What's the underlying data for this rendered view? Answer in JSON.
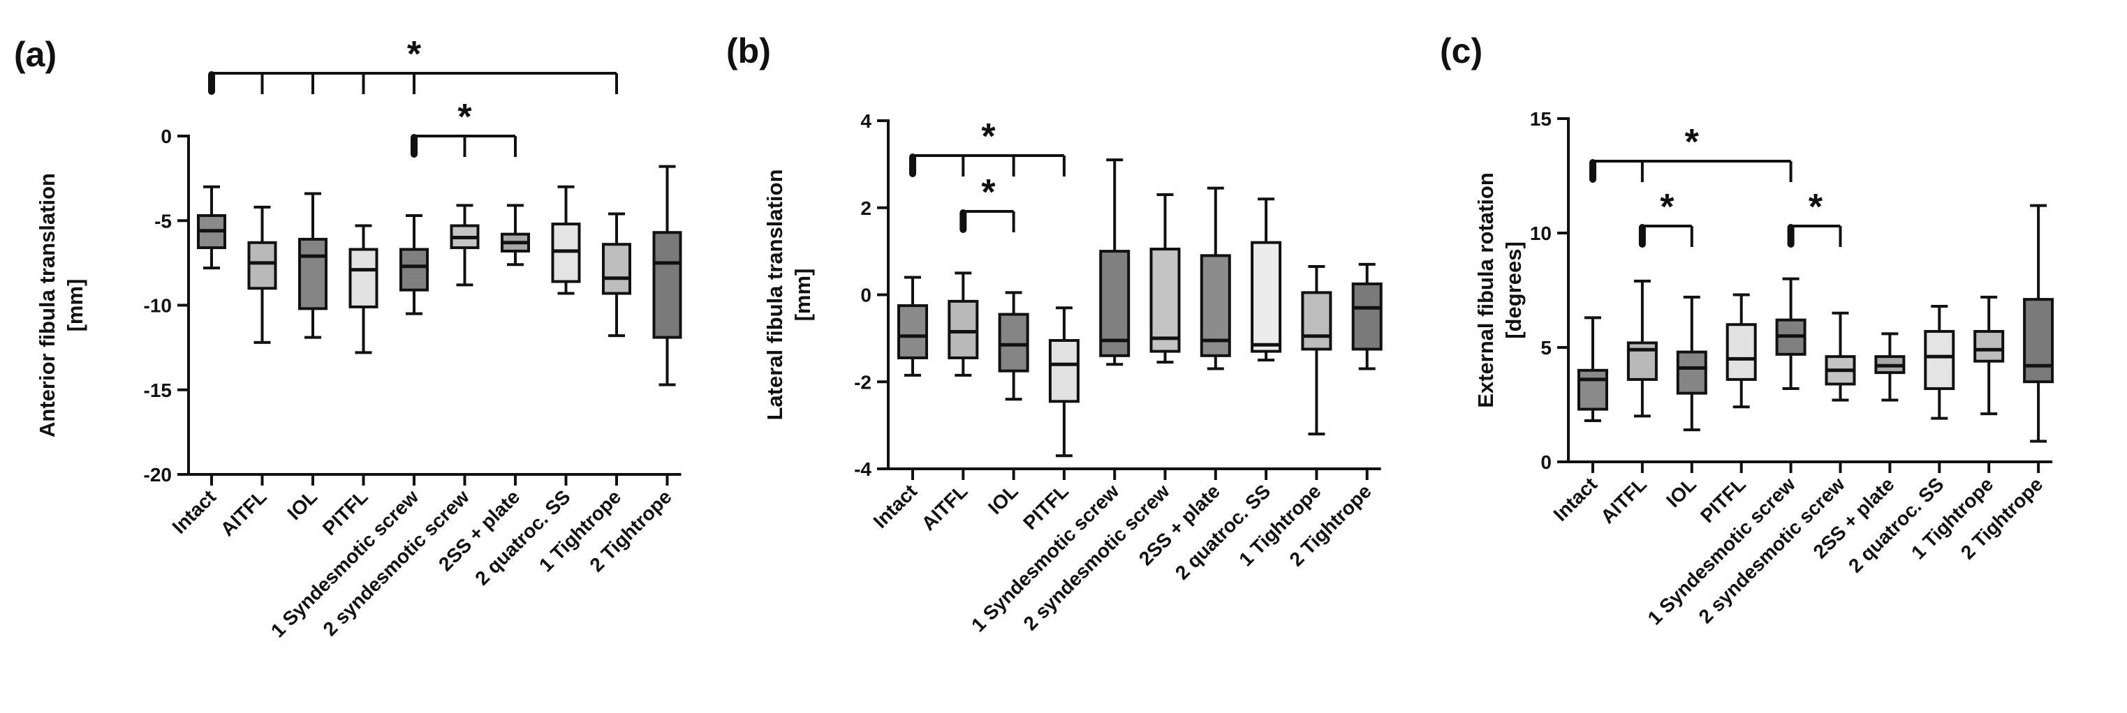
{
  "chart_data": [
    {
      "type": "box",
      "panel_label": "(a)",
      "ylabel_line1": "Anterior fibula translation",
      "ylabel_line2": "[mm]",
      "ylim": [
        -20,
        0
      ],
      "yticks": [
        0,
        -5,
        -10,
        -15,
        -20
      ],
      "ytick_labels": [
        "0",
        "-5",
        "-10",
        "-15",
        "-20"
      ],
      "categories": [
        "Intact",
        "AITFL",
        "IOL",
        "PITFL",
        "1 Syndesmotic screw",
        "2 syndesmotic screw",
        "2SS + plate",
        "2 quatroc. SS",
        "1 Tightrope",
        "2 Tightrope"
      ],
      "shades": [
        "#8a8a8a",
        "#b9b9b9",
        "#858585",
        "#e2e2e2",
        "#808080",
        "#c4c4c4",
        "#a8a8a8",
        "#e4e4e4",
        "#bdbdbd",
        "#7a7a7a"
      ],
      "boxes": [
        {
          "min": -7.8,
          "q1": -6.6,
          "median": -5.6,
          "q3": -4.7,
          "max": -3.0
        },
        {
          "min": -12.2,
          "q1": -9.0,
          "median": -7.5,
          "q3": -6.3,
          "max": -4.2
        },
        {
          "min": -11.9,
          "q1": -10.2,
          "median": -7.1,
          "q3": -6.1,
          "max": -3.4
        },
        {
          "min": -12.8,
          "q1": -10.1,
          "median": -7.9,
          "q3": -6.7,
          "max": -5.3
        },
        {
          "min": -10.5,
          "q1": -9.1,
          "median": -7.7,
          "q3": -6.7,
          "max": -4.7
        },
        {
          "min": -8.8,
          "q1": -6.6,
          "median": -6.0,
          "q3": -5.3,
          "max": -4.1
        },
        {
          "min": -7.6,
          "q1": -6.8,
          "median": -6.3,
          "q3": -5.8,
          "max": -4.1
        },
        {
          "min": -9.3,
          "q1": -8.6,
          "median": -6.8,
          "q3": -5.2,
          "max": -3.0
        },
        {
          "min": -11.8,
          "q1": -9.3,
          "median": -8.4,
          "q3": -6.4,
          "max": -4.6
        },
        {
          "min": -14.7,
          "q1": -11.9,
          "median": -7.5,
          "q3": -5.7,
          "max": -1.8
        }
      ],
      "brackets": [
        {
          "from": 0,
          "to": 8,
          "ticks": [
            1,
            2,
            3,
            4
          ],
          "label": "*",
          "level": 2
        },
        {
          "from": 4,
          "to": 6,
          "ticks": [
            5
          ],
          "label": "*",
          "level": 1
        }
      ]
    },
    {
      "type": "box",
      "panel_label": "(b)",
      "ylabel_line1": "Lateral fibula translation",
      "ylabel_line2": "[mm]",
      "ylim": [
        -4,
        4
      ],
      "yticks": [
        4,
        2,
        0,
        -2,
        -4
      ],
      "ytick_labels": [
        "4",
        "2",
        "0",
        "-2",
        "-4"
      ],
      "categories": [
        "Intact",
        "AITFL",
        "IOL",
        "PITFL",
        "1 Syndesmotic screw",
        "2 syndesmotic screw",
        "2SS + plate",
        "2 quatroc. SS",
        "1 Tightrope",
        "2 Tightrope"
      ],
      "shades": [
        "#8a8a8a",
        "#b9b9b9",
        "#858585",
        "#e2e2e2",
        "#808080",
        "#c4c4c4",
        "#8c8c8c",
        "#ececec",
        "#bdbdbd",
        "#7a7a7a"
      ],
      "boxes": [
        {
          "min": -1.85,
          "q1": -1.45,
          "median": -0.95,
          "q3": -0.25,
          "max": 0.4
        },
        {
          "min": -1.85,
          "q1": -1.45,
          "median": -0.85,
          "q3": -0.15,
          "max": 0.5
        },
        {
          "min": -2.4,
          "q1": -1.75,
          "median": -1.15,
          "q3": -0.45,
          "max": 0.05
        },
        {
          "min": -3.7,
          "q1": -2.45,
          "median": -1.6,
          "q3": -1.05,
          "max": -0.3
        },
        {
          "min": -1.6,
          "q1": -1.4,
          "median": -1.05,
          "q3": 1.0,
          "max": 3.1
        },
        {
          "min": -1.55,
          "q1": -1.3,
          "median": -1.0,
          "q3": 1.05,
          "max": 2.3
        },
        {
          "min": -1.7,
          "q1": -1.4,
          "median": -1.05,
          "q3": 0.9,
          "max": 2.45
        },
        {
          "min": -1.5,
          "q1": -1.3,
          "median": -1.15,
          "q3": 1.2,
          "max": 2.2
        },
        {
          "min": -3.2,
          "q1": -1.25,
          "median": -0.95,
          "q3": 0.05,
          "max": 0.65
        },
        {
          "min": -1.7,
          "q1": -1.25,
          "median": -0.3,
          "q3": 0.25,
          "max": 0.7
        }
      ],
      "brackets": [
        {
          "from": 0,
          "to": 3,
          "ticks": [
            1,
            2
          ],
          "label": "*",
          "level": 2
        },
        {
          "from": 1,
          "to": 2,
          "ticks": [],
          "label": "*",
          "level": 1
        }
      ]
    },
    {
      "type": "box",
      "panel_label": "(c)",
      "ylabel_line1": "External fibula rotation",
      "ylabel_line2": "[degrees]",
      "ylim": [
        0,
        15
      ],
      "yticks": [
        15,
        10,
        5,
        0
      ],
      "ytick_labels": [
        "15",
        "10",
        "5",
        "0"
      ],
      "categories": [
        "Intact",
        "AITFL",
        "IOL",
        "PITFL",
        "1 Syndesmotic screw",
        "2 syndesmotic screw",
        "2SS + plate",
        "2 quatroc. SS",
        "1 Tightrope",
        "2 Tightrope"
      ],
      "shades": [
        "#8a8a8a",
        "#b9b9b9",
        "#858585",
        "#e2e2e2",
        "#808080",
        "#c4c4c4",
        "#a8a8a8",
        "#e4e4e4",
        "#bdbdbd",
        "#7a7a7a"
      ],
      "boxes": [
        {
          "min": 1.8,
          "q1": 2.3,
          "median": 3.6,
          "q3": 4.0,
          "max": 6.3
        },
        {
          "min": 2.0,
          "q1": 3.6,
          "median": 4.9,
          "q3": 5.2,
          "max": 7.9
        },
        {
          "min": 1.4,
          "q1": 3.0,
          "median": 4.1,
          "q3": 4.8,
          "max": 7.2
        },
        {
          "min": 2.4,
          "q1": 3.6,
          "median": 4.5,
          "q3": 6.0,
          "max": 7.3
        },
        {
          "min": 3.2,
          "q1": 4.7,
          "median": 5.5,
          "q3": 6.2,
          "max": 8.0
        },
        {
          "min": 2.7,
          "q1": 3.4,
          "median": 4.0,
          "q3": 4.6,
          "max": 6.5
        },
        {
          "min": 2.7,
          "q1": 3.9,
          "median": 4.2,
          "q3": 4.6,
          "max": 5.6
        },
        {
          "min": 1.9,
          "q1": 3.2,
          "median": 4.6,
          "q3": 5.7,
          "max": 6.8
        },
        {
          "min": 2.1,
          "q1": 4.4,
          "median": 4.9,
          "q3": 5.7,
          "max": 7.2
        },
        {
          "min": 0.9,
          "q1": 3.5,
          "median": 4.2,
          "q3": 7.1,
          "max": 11.2
        }
      ],
      "brackets": [
        {
          "from": 0,
          "to": 4,
          "ticks": [
            1
          ],
          "label": "*",
          "level": 2
        },
        {
          "from": 1,
          "to": 2,
          "ticks": [],
          "label": "*",
          "level": 1
        },
        {
          "from": 4,
          "to": 5,
          "ticks": [],
          "label": "*",
          "level": 1
        }
      ]
    }
  ]
}
